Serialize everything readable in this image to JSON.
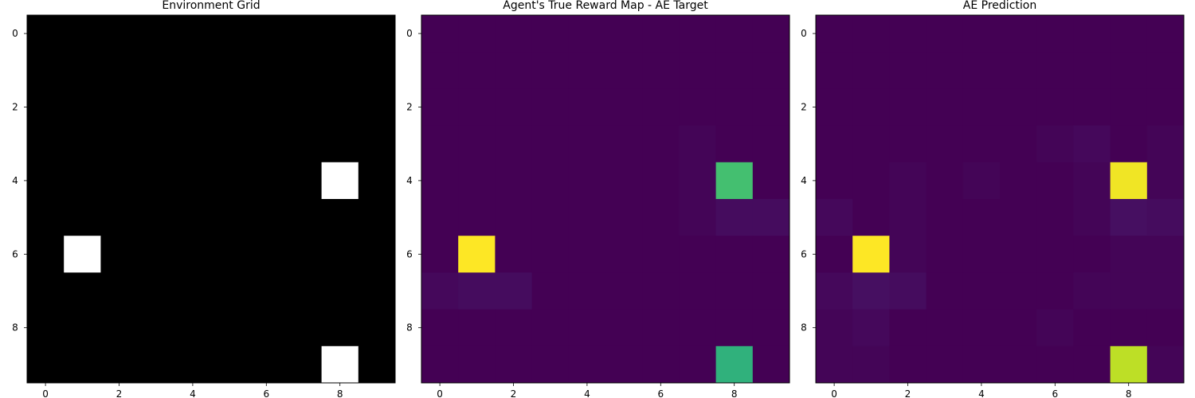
{
  "chart_data": [
    {
      "type": "heatmap",
      "title": "Environment Grid",
      "colormap": "gray",
      "vmin": 0,
      "vmax": 1,
      "xticks": [
        0,
        2,
        4,
        6,
        8
      ],
      "yticks": [
        0,
        2,
        4,
        6,
        8
      ],
      "xtick_labels": [
        "0",
        "2",
        "4",
        "6",
        "8"
      ],
      "ytick_labels": [
        "0",
        "2",
        "4",
        "6",
        "8"
      ],
      "grid": false,
      "values": [
        [
          0,
          0,
          0,
          0,
          0,
          0,
          0,
          0,
          0,
          0
        ],
        [
          0,
          0,
          0,
          0,
          0,
          0,
          0,
          0,
          0,
          0
        ],
        [
          0,
          0,
          0,
          0,
          0,
          0,
          0,
          0,
          0,
          0
        ],
        [
          0,
          0,
          0,
          0,
          0,
          0,
          0,
          0,
          0,
          0
        ],
        [
          0,
          0,
          0,
          0,
          0,
          0,
          0,
          0,
          1,
          0
        ],
        [
          0,
          0,
          0,
          0,
          0,
          0,
          0,
          0,
          0,
          0
        ],
        [
          0,
          1,
          0,
          0,
          0,
          0,
          0,
          0,
          0,
          0
        ],
        [
          0,
          0,
          0,
          0,
          0,
          0,
          0,
          0,
          0,
          0
        ],
        [
          0,
          0,
          0,
          0,
          0,
          0,
          0,
          0,
          0,
          0
        ],
        [
          0,
          0,
          0,
          0,
          0,
          0,
          0,
          0,
          1,
          0
        ]
      ]
    },
    {
      "type": "heatmap",
      "title": "Agent's True Reward Map - AE Target",
      "colormap": "viridis",
      "vmin": 0,
      "vmax": 1,
      "xticks": [
        0,
        2,
        4,
        6,
        8
      ],
      "yticks": [
        0,
        2,
        4,
        6,
        8
      ],
      "xtick_labels": [
        "0",
        "2",
        "4",
        "6",
        "8"
      ],
      "ytick_labels": [
        "0",
        "2",
        "4",
        "6",
        "8"
      ],
      "grid": false,
      "values": [
        [
          0,
          0,
          0,
          0,
          0,
          0,
          0,
          0,
          0,
          0
        ],
        [
          0,
          0,
          0,
          0,
          0,
          0,
          0,
          0,
          0,
          0
        ],
        [
          0,
          0,
          0,
          0,
          0,
          0,
          0,
          0,
          0,
          0
        ],
        [
          0,
          0,
          0,
          0,
          0,
          0,
          0,
          0.01,
          0,
          0
        ],
        [
          0,
          0,
          0,
          0,
          0,
          0,
          0,
          0.01,
          0.7,
          0
        ],
        [
          0,
          0,
          0,
          0,
          0,
          0,
          0,
          0.01,
          0.03,
          0.03
        ],
        [
          0,
          1.0,
          0,
          0,
          0,
          0,
          0,
          0,
          0,
          0
        ],
        [
          0.02,
          0.03,
          0.03,
          0,
          0,
          0,
          0,
          0,
          0,
          0
        ],
        [
          0,
          0,
          0,
          0,
          0,
          0,
          0,
          0,
          0,
          0
        ],
        [
          0,
          0,
          0,
          0,
          0,
          0,
          0,
          0,
          0.64,
          0
        ]
      ]
    },
    {
      "type": "heatmap",
      "title": "AE Prediction",
      "colormap": "viridis",
      "vmin": 0,
      "vmax": 1,
      "xticks": [
        0,
        2,
        4,
        6,
        8
      ],
      "yticks": [
        0,
        2,
        4,
        6,
        8
      ],
      "xtick_labels": [
        "0",
        "2",
        "4",
        "6",
        "8"
      ],
      "ytick_labels": [
        "0",
        "2",
        "4",
        "6",
        "8"
      ],
      "grid": false,
      "values": [
        [
          0,
          0,
          0,
          0,
          0,
          0,
          0,
          0,
          0,
          0
        ],
        [
          0,
          0,
          0,
          0,
          0,
          0,
          0,
          0,
          0,
          0
        ],
        [
          0,
          0,
          0,
          0,
          0,
          0,
          0,
          0,
          0,
          0
        ],
        [
          0,
          0,
          0,
          0,
          0,
          0,
          0.01,
          0.02,
          0,
          0.01
        ],
        [
          0,
          0,
          0.01,
          0,
          0.01,
          0,
          0,
          0.01,
          0.98,
          0.01
        ],
        [
          0.02,
          0,
          0.01,
          0,
          0,
          0,
          0,
          0.01,
          0.04,
          0.03
        ],
        [
          0,
          1.0,
          0.01,
          0,
          0,
          0,
          0,
          0,
          0.01,
          0.01
        ],
        [
          0.02,
          0.04,
          0.03,
          0,
          0,
          0,
          0,
          0.01,
          0.01,
          0.01
        ],
        [
          0.01,
          0.02,
          0,
          0,
          0,
          0,
          0.01,
          0,
          0,
          0
        ],
        [
          0.01,
          0.01,
          0,
          0,
          0,
          0,
          0,
          0,
          0.9,
          0.01
        ]
      ]
    }
  ]
}
